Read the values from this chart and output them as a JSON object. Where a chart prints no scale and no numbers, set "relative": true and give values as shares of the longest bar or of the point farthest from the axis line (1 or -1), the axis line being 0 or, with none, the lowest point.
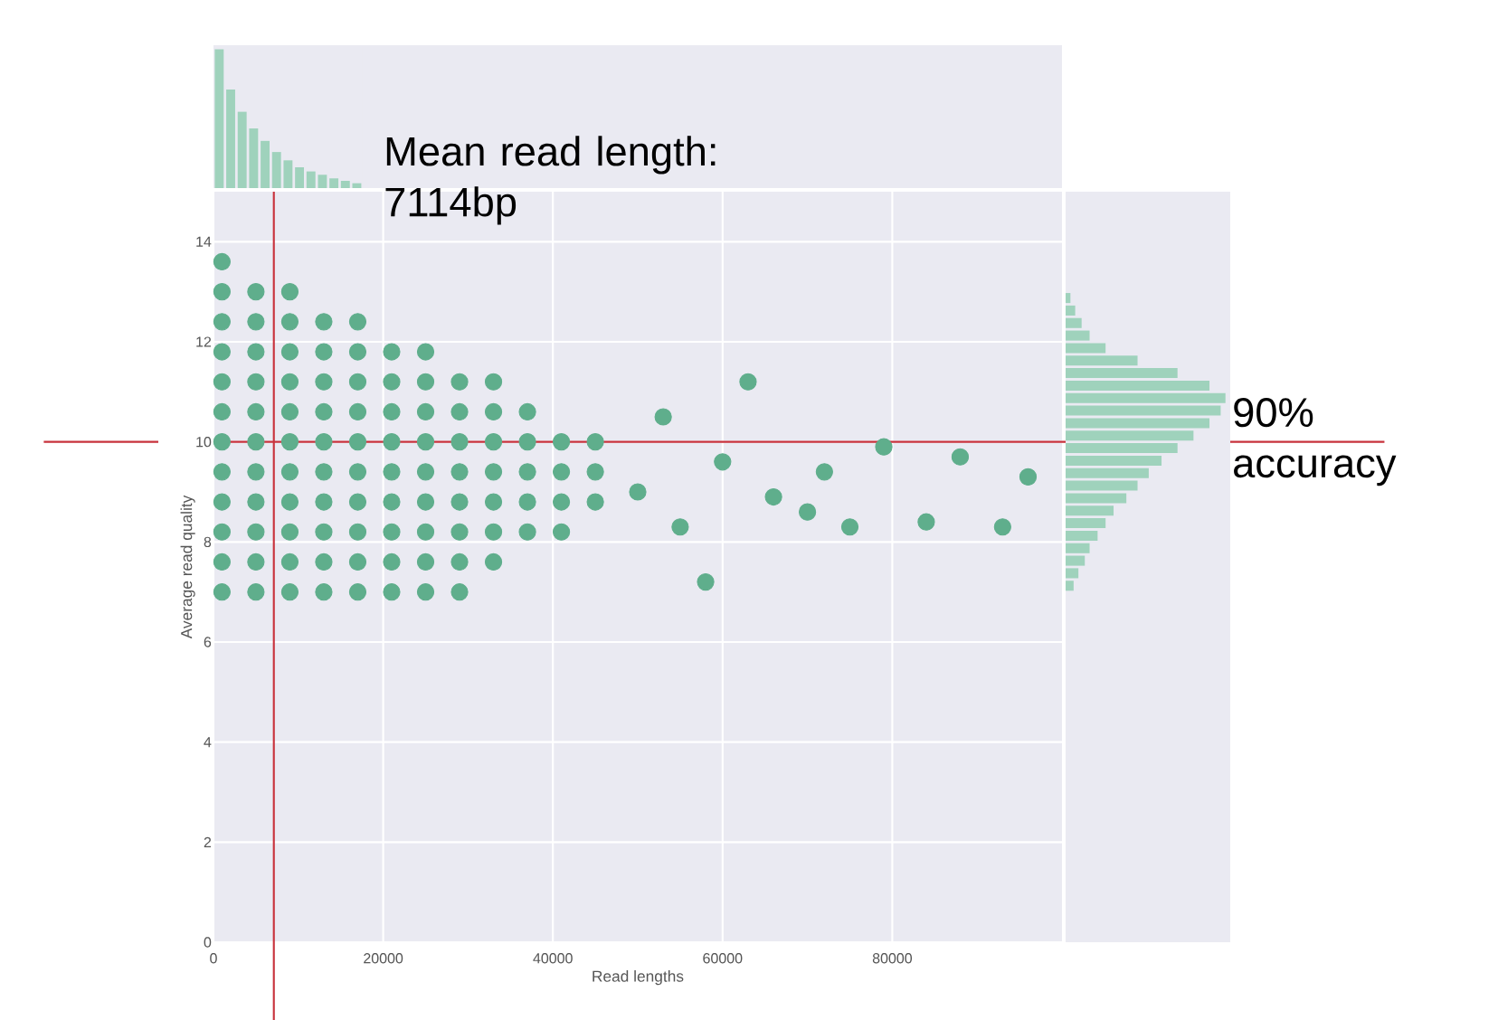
{
  "chart_data": [
    {
      "type": "bar",
      "relative": true,
      "color": "#9fd2bc",
      "categories": [
        null,
        null,
        null,
        null,
        null,
        null,
        null,
        null,
        null,
        null,
        null,
        null,
        null
      ],
      "values": [
        1,
        0.71,
        0.55,
        0.43,
        0.34,
        0.26,
        0.2,
        0.15,
        0.12,
        0.096,
        0.07,
        0.052,
        0.035
      ]
    },
    {
      "type": "scatter",
      "color": "#5fae8c",
      "marker": "circle",
      "xlabel": "Read lengths",
      "ylabel": "Average read quality",
      "xlim": [
        0,
        100000
      ],
      "ylim": [
        0,
        15
      ],
      "xticks": [
        0,
        20000,
        40000,
        60000,
        80000
      ],
      "yticks": [
        0,
        2,
        4,
        6,
        8,
        10,
        12,
        14
      ],
      "grid": true,
      "x": [
        1000,
        1000,
        1000,
        1000,
        1000,
        1000,
        1000,
        1000,
        1000,
        1000,
        1000,
        1000,
        5000,
        5000,
        5000,
        5000,
        5000,
        5000,
        5000,
        5000,
        5000,
        5000,
        5000,
        9000,
        9000,
        9000,
        9000,
        9000,
        9000,
        9000,
        9000,
        9000,
        9000,
        9000,
        13000,
        13000,
        13000,
        13000,
        13000,
        13000,
        13000,
        13000,
        13000,
        13000,
        17000,
        17000,
        17000,
        17000,
        17000,
        17000,
        17000,
        17000,
        17000,
        17000,
        21000,
        21000,
        21000,
        21000,
        21000,
        21000,
        21000,
        21000,
        21000,
        25000,
        25000,
        25000,
        25000,
        25000,
        25000,
        25000,
        25000,
        25000,
        29000,
        29000,
        29000,
        29000,
        29000,
        29000,
        29000,
        29000,
        33000,
        33000,
        33000,
        33000,
        33000,
        33000,
        33000,
        37000,
        37000,
        37000,
        37000,
        37000,
        41000,
        41000,
        41000,
        41000,
        45000,
        45000,
        45000,
        50000,
        53000,
        55000,
        58000,
        60000,
        63000,
        66000,
        70000,
        72000,
        75000,
        79000,
        84000,
        88000,
        93000,
        96000
      ],
      "values": [
        7.0,
        7.6,
        8.2,
        8.8,
        9.4,
        10.0,
        10.6,
        11.2,
        11.8,
        12.4,
        13.0,
        13.6,
        7.0,
        7.6,
        8.2,
        8.8,
        9.4,
        10.0,
        10.6,
        11.2,
        11.8,
        12.4,
        13.0,
        7.0,
        7.6,
        8.2,
        8.8,
        9.4,
        10.0,
        10.6,
        11.2,
        11.8,
        12.4,
        13.0,
        7.0,
        7.6,
        8.2,
        8.8,
        9.4,
        10.0,
        10.6,
        11.2,
        11.8,
        12.4,
        7.0,
        7.6,
        8.2,
        8.8,
        9.4,
        10.0,
        10.6,
        11.2,
        11.8,
        12.4,
        7.0,
        7.6,
        8.2,
        8.8,
        9.4,
        10.0,
        10.6,
        11.2,
        11.8,
        7.0,
        7.6,
        8.2,
        8.8,
        9.4,
        10.0,
        10.6,
        11.2,
        11.8,
        7.0,
        7.6,
        8.2,
        8.8,
        9.4,
        10.0,
        10.6,
        11.2,
        7.6,
        8.2,
        8.8,
        9.4,
        10.0,
        10.6,
        11.2,
        8.2,
        8.8,
        9.4,
        10.0,
        10.6,
        8.2,
        8.8,
        9.4,
        10.0,
        8.8,
        9.4,
        10.0,
        9.0,
        10.5,
        8.3,
        7.2,
        9.6,
        11.2,
        8.9,
        8.6,
        9.4,
        8.3,
        9.9,
        8.4,
        9.7,
        8.3,
        9.3
      ],
      "ref_lines": [
        {
          "axis": "x",
          "value": 7114,
          "label": "Mean read length: 7114bp",
          "color": "#c8323c"
        },
        {
          "axis": "y",
          "value": 10,
          "label": "90% accuracy",
          "color": "#c8323c"
        }
      ]
    },
    {
      "type": "bar",
      "orientation": "horizontal",
      "relative": true,
      "color": "#9fd2bc",
      "categories": [
        null,
        null,
        null,
        null,
        null,
        null,
        null,
        null,
        null,
        null,
        null,
        null,
        null,
        null,
        null,
        null,
        null,
        null,
        null,
        null,
        null,
        null,
        null,
        null
      ],
      "values": [
        0.03,
        0.06,
        0.1,
        0.15,
        0.25,
        0.45,
        0.7,
        0.9,
        1.0,
        0.97,
        0.9,
        0.8,
        0.7,
        0.6,
        0.52,
        0.45,
        0.38,
        0.3,
        0.25,
        0.2,
        0.15,
        0.12,
        0.08,
        0.05
      ]
    }
  ]
}
